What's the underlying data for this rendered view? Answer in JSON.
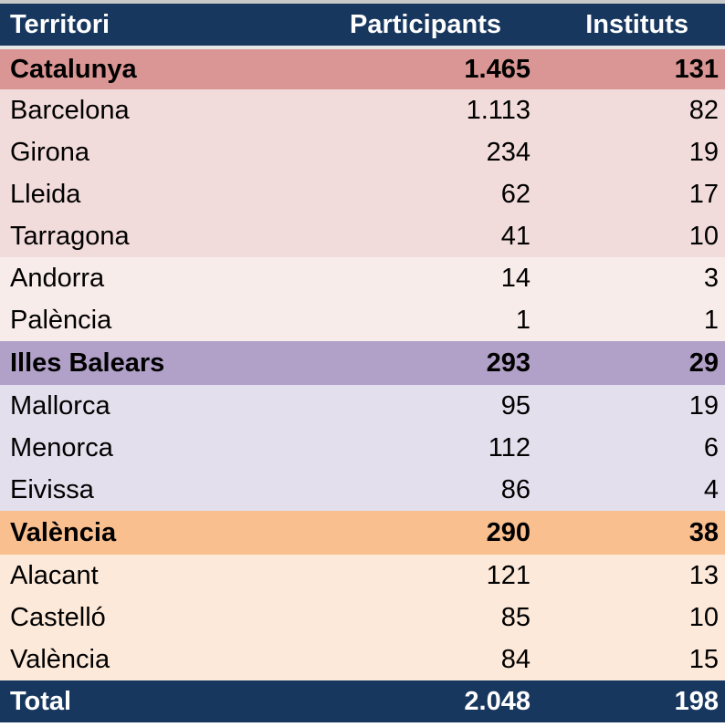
{
  "header": {
    "territori": "Territori",
    "participants": "Participants",
    "instituts": "Instituts"
  },
  "catalunya": {
    "head": {
      "name": "Catalunya",
      "participants": "1.465",
      "instituts": "131"
    },
    "rows": [
      {
        "name": "Barcelona",
        "participants": "1.113",
        "instituts": "82"
      },
      {
        "name": "Girona",
        "participants": "234",
        "instituts": "19"
      },
      {
        "name": "Lleida",
        "participants": "62",
        "instituts": "17"
      },
      {
        "name": "Tarragona",
        "participants": "41",
        "instituts": "10"
      }
    ],
    "extra": [
      {
        "name": "Andorra",
        "participants": "14",
        "instituts": "3"
      },
      {
        "name": "Palència",
        "participants": "1",
        "instituts": "1"
      }
    ]
  },
  "balears": {
    "head": {
      "name": "Illes Balears",
      "participants": "293",
      "instituts": "29"
    },
    "rows": [
      {
        "name": "Mallorca",
        "participants": "95",
        "instituts": "19"
      },
      {
        "name": "Menorca",
        "participants": "112",
        "instituts": "6"
      },
      {
        "name": "Eivissa",
        "participants": "86",
        "instituts": "4"
      }
    ]
  },
  "valencia": {
    "head": {
      "name": "València",
      "participants": "290",
      "instituts": "38"
    },
    "rows": [
      {
        "name": "Alacant",
        "participants": "121",
        "instituts": "13"
      },
      {
        "name": "Castelló",
        "participants": "85",
        "instituts": "10"
      },
      {
        "name": "València",
        "participants": "84",
        "instituts": "15"
      }
    ]
  },
  "total": {
    "name": "Total",
    "participants": "2.048",
    "instituts": "198"
  },
  "colors": {
    "header_bg": "#17375e",
    "catalunya_head": "#da9694",
    "catalunya_row": "#f2dcdb",
    "balears_head": "#b1a0c7",
    "balears_row": "#e4dfec",
    "valencia_head": "#fabf8f",
    "valencia_row": "#fde9d9"
  }
}
